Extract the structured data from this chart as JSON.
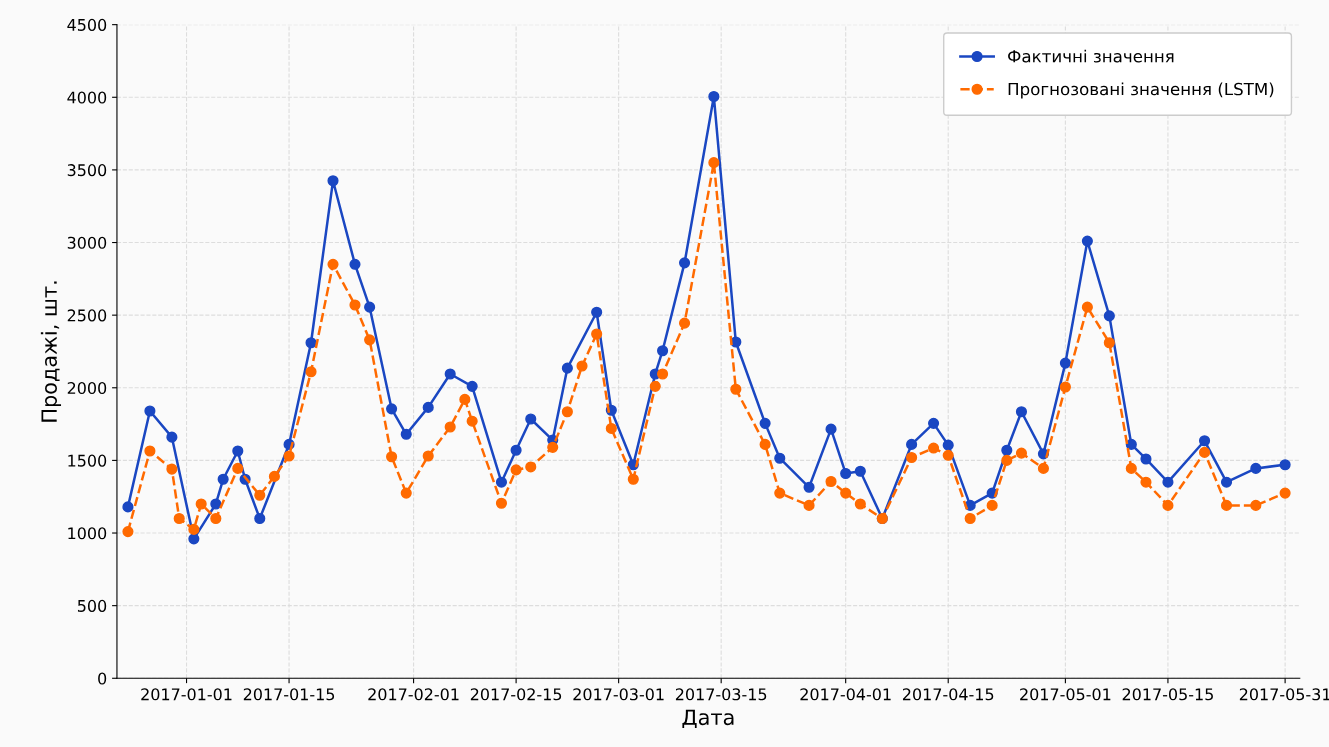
{
  "chart_data": {
    "type": "line",
    "xlabel": "Дата",
    "ylabel": "Продажі, шт.",
    "xlim": [
      "2016-12-22T12:00",
      "2017-06-02"
    ],
    "xticks": [
      {
        "value": "2017-01-01",
        "label": "2017-01-01"
      },
      {
        "value": "2017-01-15",
        "label": "2017-01-15"
      },
      {
        "value": "2017-02-01",
        "label": "2017-02-01"
      },
      {
        "value": "2017-02-15",
        "label": "2017-02-15"
      },
      {
        "value": "2017-03-01",
        "label": "2017-03-01"
      },
      {
        "value": "2017-03-15",
        "label": "2017-03-15"
      },
      {
        "value": "2017-04-01",
        "label": "2017-04-01"
      },
      {
        "value": "2017-04-15",
        "label": "2017-04-15"
      },
      {
        "value": "2017-05-01",
        "label": "2017-05-01"
      },
      {
        "value": "2017-05-15",
        "label": "2017-05-15"
      },
      {
        "value": "2017-05-31",
        "label": "2017-05-31"
      }
    ],
    "ylim": [
      0,
      4500
    ],
    "yticks": [
      0,
      500,
      1000,
      1500,
      2000,
      2500,
      3000,
      3500,
      4000,
      4500
    ],
    "grid": true,
    "legend": "top right",
    "marker": "circle",
    "series": [
      {
        "name": "Фактичні значення",
        "color": "#1a47c2",
        "line_style": "solid",
        "x": [
          "2016-12-24",
          "2016-12-27",
          "2016-12-30",
          "2017-01-02",
          "2017-01-05",
          "2017-01-06",
          "2017-01-08",
          "2017-01-09",
          "2017-01-11",
          "2017-01-15",
          "2017-01-18",
          "2017-01-21",
          "2017-01-24",
          "2017-01-26",
          "2017-01-29",
          "2017-01-31",
          "2017-02-03",
          "2017-02-06",
          "2017-02-09",
          "2017-02-13",
          "2017-02-15",
          "2017-02-17",
          "2017-02-20",
          "2017-02-22",
          "2017-02-26",
          "2017-02-28",
          "2017-03-03",
          "2017-03-06",
          "2017-03-07",
          "2017-03-10",
          "2017-03-14",
          "2017-03-17",
          "2017-03-21",
          "2017-03-23",
          "2017-03-27",
          "2017-03-30",
          "2017-04-01",
          "2017-04-03",
          "2017-04-06",
          "2017-04-10",
          "2017-04-13",
          "2017-04-15",
          "2017-04-18",
          "2017-04-21",
          "2017-04-23",
          "2017-04-25",
          "2017-04-28",
          "2017-05-01",
          "2017-05-04",
          "2017-05-07",
          "2017-05-10",
          "2017-05-12",
          "2017-05-15",
          "2017-05-20",
          "2017-05-23",
          "2017-05-27",
          "2017-05-31"
        ],
        "values": [
          1180,
          1840,
          1660,
          960,
          1200,
          1370,
          1565,
          1370,
          1100,
          1610,
          2310,
          3425,
          2850,
          2555,
          1855,
          1680,
          1865,
          2095,
          2010,
          1350,
          1570,
          1785,
          1640,
          2135,
          2520,
          1845,
          1470,
          2095,
          2255,
          2860,
          4005,
          2315,
          1755,
          1515,
          1315,
          1715,
          1410,
          1425,
          1100,
          1610,
          1755,
          1605,
          1190,
          1275,
          1570,
          1835,
          1545,
          2170,
          3010,
          2495,
          1610,
          1510,
          1350,
          1635,
          1350,
          1445,
          1470
        ]
      },
      {
        "name": "Прогнозовані значення (LSTM)",
        "color": "#ff6a00",
        "line_style": "dashed",
        "x": [
          "2016-12-24",
          "2016-12-27",
          "2016-12-30",
          "2016-12-31",
          "2017-01-02",
          "2017-01-03",
          "2017-01-05",
          "2017-01-08",
          "2017-01-11",
          "2017-01-13",
          "2017-01-15",
          "2017-01-18",
          "2017-01-21",
          "2017-01-24",
          "2017-01-26",
          "2017-01-29",
          "2017-01-31",
          "2017-02-03",
          "2017-02-06",
          "2017-02-08",
          "2017-02-09",
          "2017-02-13",
          "2017-02-15",
          "2017-02-17",
          "2017-02-20",
          "2017-02-22",
          "2017-02-24",
          "2017-02-26",
          "2017-02-28",
          "2017-03-03",
          "2017-03-06",
          "2017-03-07",
          "2017-03-10",
          "2017-03-14",
          "2017-03-17",
          "2017-03-21",
          "2017-03-23",
          "2017-03-27",
          "2017-03-30",
          "2017-04-01",
          "2017-04-03",
          "2017-04-06",
          "2017-04-10",
          "2017-04-13",
          "2017-04-15",
          "2017-04-18",
          "2017-04-21",
          "2017-04-23",
          "2017-04-25",
          "2017-04-28",
          "2017-05-01",
          "2017-05-04",
          "2017-05-07",
          "2017-05-10",
          "2017-05-12",
          "2017-05-15",
          "2017-05-20",
          "2017-05-23",
          "2017-05-27",
          "2017-05-31"
        ],
        "values": [
          1010,
          1565,
          1440,
          1100,
          1025,
          1200,
          1100,
          1445,
          1260,
          1390,
          1530,
          2110,
          2850,
          2570,
          2330,
          1525,
          1275,
          1530,
          1730,
          1920,
          1770,
          1205,
          1435,
          1455,
          1590,
          1835,
          2150,
          2370,
          1720,
          1370,
          2010,
          2095,
          2445,
          3550,
          1990,
          1610,
          1275,
          1190,
          1355,
          1275,
          1200,
          1100,
          1520,
          1585,
          1535,
          1100,
          1190,
          1500,
          1550,
          1445,
          2005,
          2555,
          2310,
          1445,
          1350,
          1190,
          1555,
          1190,
          1190,
          1275
        ]
      }
    ]
  }
}
